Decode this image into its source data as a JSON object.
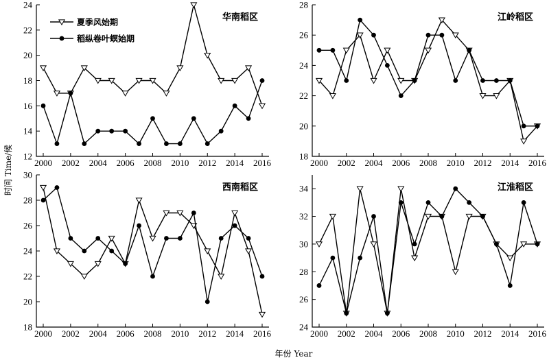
{
  "chart_data": {
    "type": "line",
    "panel_count": 4,
    "xlabel": "年份 Year",
    "ylabel": "时间 Time/候",
    "legend": {
      "placement": "top-left of first panel",
      "items": [
        {
          "name": "夏季风始期",
          "marker": "open-triangle-down"
        },
        {
          "name": "稻纵卷叶螟始期",
          "marker": "filled-circle"
        }
      ]
    },
    "panels": [
      {
        "title": "华南稻区",
        "x": [
          2000,
          2001,
          2002,
          2003,
          2004,
          2005,
          2006,
          2007,
          2008,
          2009,
          2010,
          2011,
          2012,
          2013,
          2014,
          2015,
          2016
        ],
        "xticks": [
          "2000",
          "2002",
          "2004",
          "2006",
          "2008",
          "2010",
          "2012",
          "2014",
          "2016"
        ],
        "ylim": [
          12,
          24
        ],
        "yticks": [
          "12",
          "14",
          "16",
          "18",
          "20",
          "22",
          "24"
        ],
        "series": [
          {
            "name": "夏季风始期",
            "marker": "open-triangle-down",
            "values": [
              19,
              17,
              17,
              19,
              18,
              18,
              17,
              18,
              18,
              17,
              19,
              24,
              20,
              18,
              18,
              19,
              16
            ]
          },
          {
            "name": "稻纵卷叶螟始期",
            "marker": "filled-circle",
            "values": [
              16,
              13,
              17,
              13,
              14,
              14,
              14,
              13,
              15,
              13,
              13,
              15,
              13,
              14,
              16,
              15,
              18
            ]
          }
        ]
      },
      {
        "title": "江岭稻区",
        "x": [
          2000,
          2001,
          2002,
          2003,
          2004,
          2005,
          2006,
          2007,
          2008,
          2009,
          2010,
          2011,
          2012,
          2013,
          2014,
          2015,
          2016
        ],
        "xticks": [
          "2000",
          "2002",
          "2004",
          "2006",
          "2008",
          "2010",
          "2012",
          "2014",
          "2016"
        ],
        "ylim": [
          18,
          28
        ],
        "yticks": [
          "18",
          "20",
          "22",
          "24",
          "26",
          "28"
        ],
        "series": [
          {
            "name": "夏季风始期",
            "marker": "open-triangle-down",
            "values": [
              23,
              22,
              25,
              26,
              23,
              25,
              23,
              23,
              25,
              27,
              26,
              25,
              22,
              22,
              23,
              19,
              20
            ]
          },
          {
            "name": "稻纵卷叶螟始期",
            "marker": "filled-circle",
            "values": [
              25,
              25,
              23,
              27,
              26,
              24,
              22,
              23,
              26,
              26,
              23,
              25,
              23,
              23,
              23,
              20,
              20
            ]
          }
        ]
      },
      {
        "title": "西南稻区",
        "x": [
          2000,
          2001,
          2002,
          2003,
          2004,
          2005,
          2006,
          2007,
          2008,
          2009,
          2010,
          2011,
          2012,
          2013,
          2014,
          2015,
          2016
        ],
        "xticks": [
          "2000",
          "2002",
          "2004",
          "2006",
          "2008",
          "2010",
          "2012",
          "2014",
          "2016"
        ],
        "ylim": [
          18,
          30
        ],
        "yticks": [
          "18",
          "20",
          "22",
          "24",
          "26",
          "28",
          "30"
        ],
        "series": [
          {
            "name": "夏季风始期",
            "marker": "open-triangle-down",
            "values": [
              29,
              24,
              23,
              22,
              23,
              25,
              23,
              28,
              25,
              27,
              27,
              26,
              24,
              22,
              27,
              24,
              19
            ]
          },
          {
            "name": "稻纵卷叶螟始期",
            "marker": "filled-circle",
            "values": [
              28,
              29,
              25,
              24,
              25,
              24,
              23,
              26,
              22,
              25,
              25,
              27,
              20,
              25,
              26,
              25,
              22
            ]
          }
        ]
      },
      {
        "title": "江淮稻区",
        "x": [
          2000,
          2001,
          2002,
          2003,
          2004,
          2005,
          2006,
          2007,
          2008,
          2009,
          2010,
          2011,
          2012,
          2013,
          2014,
          2015,
          2016
        ],
        "xticks": [
          "2000",
          "2002",
          "2004",
          "2006",
          "2008",
          "2010",
          "2012",
          "2014",
          "2016"
        ],
        "ylim": [
          24,
          35
        ],
        "yticks": [
          "24",
          "26",
          "28",
          "30",
          "32",
          "34"
        ],
        "series": [
          {
            "name": "夏季风始期",
            "marker": "open-triangle-down",
            "values": [
              30,
              32,
              25,
              34,
              30,
              25,
              34,
              29,
              32,
              32,
              28,
              32,
              32,
              30,
              29,
              30,
              30
            ]
          },
          {
            "name": "稻纵卷叶螟始期",
            "marker": "filled-circle",
            "values": [
              27,
              29,
              25,
              29,
              32,
              25,
              33,
              30,
              33,
              32,
              34,
              33,
              32,
              30,
              27,
              33,
              30
            ]
          }
        ]
      }
    ]
  }
}
